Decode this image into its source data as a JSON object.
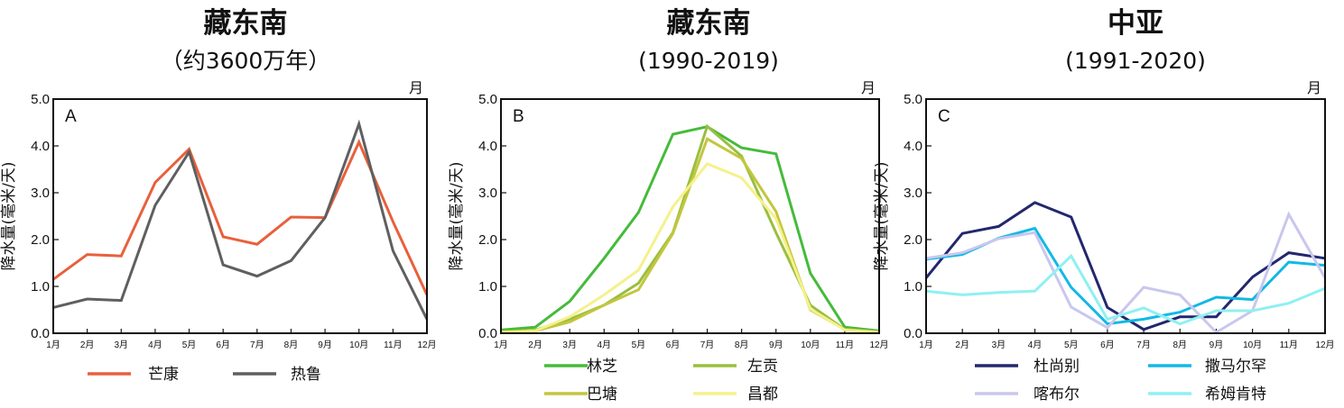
{
  "chart_data": [
    {
      "type": "line",
      "title": "藏东南",
      "subtitle": "（约3600万年）",
      "panel_label": "A",
      "unit": "月",
      "ylabel": "降水量(毫米/天)",
      "yticks": [
        "0.0",
        "1.0",
        "2.0",
        "3.0",
        "4.0",
        "5.0"
      ],
      "ylim": [
        0,
        5
      ],
      "categories": [
        "1月",
        "2月",
        "3月",
        "4月",
        "5月",
        "6月",
        "7月",
        "8月",
        "9月",
        "10月",
        "11月",
        "12月"
      ],
      "series": [
        {
          "name": "芒康",
          "color": "#e8603c",
          "values": [
            1.15,
            1.68,
            1.65,
            3.22,
            3.93,
            2.06,
            1.9,
            2.48,
            2.47,
            4.08,
            2.38,
            0.82
          ]
        },
        {
          "name": "热鲁",
          "color": "#5f5f5f",
          "values": [
            0.55,
            0.73,
            0.7,
            2.73,
            3.87,
            1.46,
            1.22,
            1.55,
            2.47,
            4.47,
            1.76,
            0.3
          ]
        }
      ],
      "legend_position": "bottom"
    },
    {
      "type": "line",
      "title": "藏东南",
      "subtitle": "(1990-2019)",
      "panel_label": "B",
      "unit": "月",
      "ylabel": "降水量(毫米/天)",
      "yticks": [
        "0.0",
        "1.0",
        "2.0",
        "3.0",
        "4.0",
        "5.0"
      ],
      "ylim": [
        0,
        5
      ],
      "categories": [
        "1月",
        "2月",
        "3月",
        "4月",
        "5月",
        "6月",
        "7月",
        "8月",
        "9月",
        "10月",
        "11月",
        "12月"
      ],
      "series": [
        {
          "name": "林芝",
          "color": "#45bb3a",
          "values": [
            0.07,
            0.13,
            0.68,
            1.6,
            2.58,
            4.25,
            4.41,
            3.96,
            3.83,
            1.28,
            0.13,
            0.05
          ]
        },
        {
          "name": "左贡",
          "color": "#99bf3f",
          "values": [
            0.03,
            0.07,
            0.3,
            0.6,
            1.07,
            2.15,
            4.42,
            3.78,
            2.15,
            0.6,
            0.08,
            0.02
          ]
        },
        {
          "name": "巴塘",
          "color": "#c3c63e",
          "values": [
            0.03,
            0.05,
            0.24,
            0.6,
            0.93,
            2.13,
            4.15,
            3.73,
            2.6,
            0.5,
            0.08,
            0.03
          ]
        },
        {
          "name": "昌都",
          "color": "#f5f18c",
          "values": [
            0.02,
            0.05,
            0.35,
            0.82,
            1.35,
            2.7,
            3.62,
            3.32,
            2.45,
            0.52,
            0.07,
            0.02
          ]
        }
      ],
      "legend_position": "bottom"
    },
    {
      "type": "line",
      "title": "中亚",
      "subtitle": "(1991-2020)",
      "panel_label": "C",
      "unit": "月",
      "ylabel": "降水量(毫米/天)",
      "yticks": [
        "0.0",
        "1.0",
        "2.0",
        "3.0",
        "4.0",
        "5.0"
      ],
      "ylim": [
        0,
        5
      ],
      "categories": [
        "1月",
        "2月",
        "3月",
        "4月",
        "5月",
        "6月",
        "7月",
        "8月",
        "9月",
        "10月",
        "11月",
        "12月"
      ],
      "series": [
        {
          "name": "杜尚别",
          "color": "#23276e",
          "values": [
            1.18,
            2.13,
            2.28,
            2.79,
            2.48,
            0.55,
            0.08,
            0.35,
            0.35,
            1.2,
            1.72,
            1.6
          ]
        },
        {
          "name": "撒马尔罕",
          "color": "#12b8e6",
          "values": [
            1.58,
            1.68,
            2.03,
            2.24,
            0.98,
            0.2,
            0.3,
            0.45,
            0.77,
            0.72,
            1.52,
            1.45
          ]
        },
        {
          "name": "喀布尔",
          "color": "#c9c7ed",
          "values": [
            1.6,
            1.72,
            2.02,
            2.15,
            0.56,
            0.12,
            0.98,
            0.82,
            0.02,
            0.48,
            2.54,
            1.18
          ]
        },
        {
          "name": "希姆肯特",
          "color": "#8ff0f2",
          "values": [
            0.9,
            0.82,
            0.87,
            0.9,
            1.65,
            0.3,
            0.54,
            0.2,
            0.48,
            0.48,
            0.64,
            0.96
          ]
        }
      ],
      "legend_position": "bottom"
    }
  ]
}
